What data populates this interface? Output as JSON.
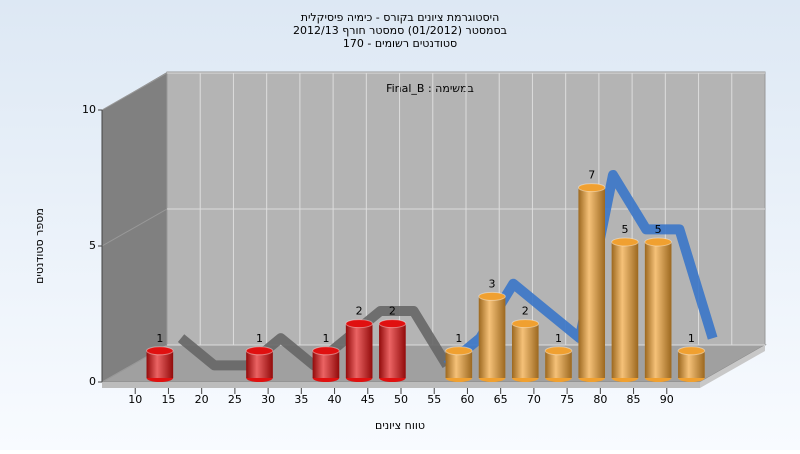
{
  "chart_data": {
    "type": "histogram",
    "title": [
      "היסטוגרמת ציונים בקורס - כימיה פיסיקלית",
      "בסמסטר (01/2012) סמסטר חורף 2012/13",
      "סטודנטים רשומים - 170"
    ],
    "annotation": "Final_B : במשימה",
    "x_label": "טווח ציונים",
    "y_label": "מספר סטודנטים",
    "bins": [
      10,
      15,
      20,
      25,
      30,
      35,
      40,
      45,
      50,
      55,
      60,
      65,
      70,
      75,
      80,
      85,
      90,
      95
    ],
    "counts": [
      1,
      0,
      0,
      1,
      0,
      1,
      2,
      2,
      0,
      1,
      3,
      2,
      1,
      7,
      5,
      5,
      1
    ],
    "colors": [
      "#e01010",
      "#e01010",
      "#e01010",
      "#e01010",
      "#e01010",
      "#e01010",
      "#e01010",
      "#e01010",
      "#e01010",
      "#f0a030",
      "#f0a030",
      "#f0a030",
      "#f0a030",
      "#f0a030",
      "#f0a030",
      "#f0a030",
      "#f0a030"
    ],
    "xlim": [
      5,
      95
    ],
    "xticks": [
      10,
      15,
      20,
      25,
      30,
      35,
      40,
      45,
      50,
      55,
      60,
      65,
      70,
      75,
      80,
      85,
      90
    ],
    "ylim": [
      0,
      10
    ],
    "yticks": [
      0,
      5,
      10
    ],
    "grid": true
  }
}
